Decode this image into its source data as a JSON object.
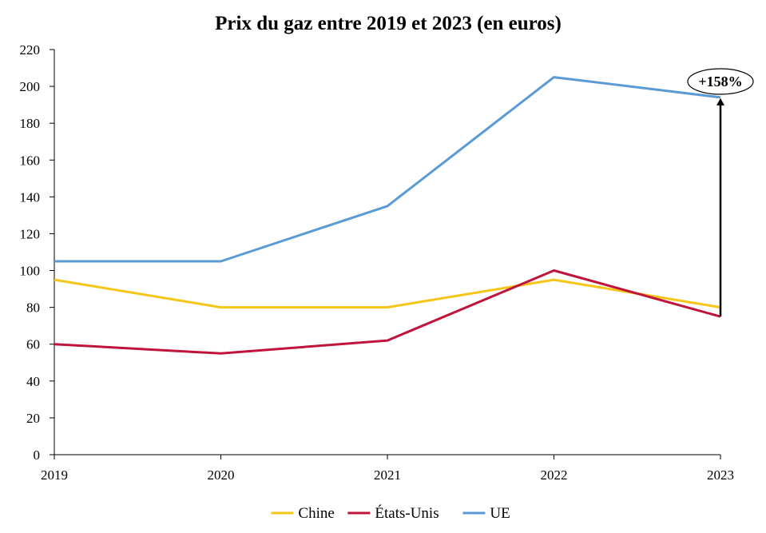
{
  "chart_data": {
    "type": "line",
    "title": "Prix du gaz entre 2019 et 2023 (en euros)",
    "xlabel": "",
    "ylabel": "",
    "categories": [
      "2019",
      "2020",
      "2021",
      "2022",
      "2023"
    ],
    "ylim": [
      0,
      220
    ],
    "yticks": [
      0,
      20,
      40,
      60,
      80,
      100,
      120,
      140,
      160,
      180,
      200,
      220
    ],
    "grid": false,
    "legend_position": "bottom",
    "series": [
      {
        "name": "Chine",
        "color": "#f5c518",
        "values": [
          95,
          80,
          80,
          95,
          80
        ]
      },
      {
        "name": "États-Unis",
        "color": "#c0143c",
        "values": [
          60,
          55,
          62,
          100,
          75
        ]
      },
      {
        "name": "UE",
        "color": "#5b9bd5",
        "values": [
          105,
          105,
          135,
          205,
          194
        ]
      }
    ],
    "annotation": {
      "text": "+158%",
      "category": "2023",
      "from_value": 75,
      "to_value": 194
    }
  }
}
